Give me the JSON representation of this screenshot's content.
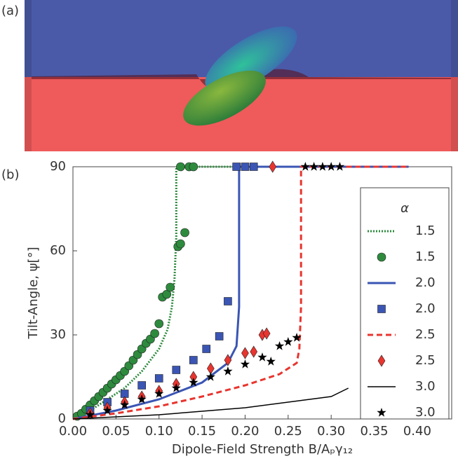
{
  "panel_labels": [
    "(a)",
    "(b)"
  ],
  "chart_data": {
    "type": "line",
    "xlabel": "Dipole-Field Strength B/Aₚγ₁₂",
    "ylabel": "Tilt-Angle, ψ[°]",
    "xlim": [
      0,
      0.44
    ],
    "ylim": [
      0,
      90
    ],
    "xticks": [
      {
        "value": 0,
        "label": "0.00"
      },
      {
        "value": 0.05,
        "label": "0.05"
      },
      {
        "value": 0.1,
        "label": "0.10"
      },
      {
        "value": 0.15,
        "label": "0.15"
      },
      {
        "value": 0.2,
        "label": "0.20"
      },
      {
        "value": 0.25,
        "label": "0.25"
      },
      {
        "value": 0.3,
        "label": "0.30"
      },
      {
        "value": 0.35,
        "label": "0.35"
      },
      {
        "value": 0.4,
        "label": "0.40"
      }
    ],
    "yticks": [
      0,
      30,
      60,
      90
    ],
    "legend_title": "α",
    "legend": "right",
    "series": [
      {
        "name": "1.5",
        "color": "#2e8b3e",
        "style": "dotted",
        "x": [
          0,
          0.02,
          0.04,
          0.06,
          0.08,
          0.1,
          0.11,
          0.115,
          0.118,
          0.12,
          0.12,
          0.39
        ],
        "values": [
          0,
          3,
          7,
          11,
          17,
          25,
          32,
          40,
          50,
          65,
          90,
          90
        ]
      },
      {
        "name": "1.5",
        "color": "#2e8b3e",
        "marker": "circle",
        "x": [
          0.005,
          0.01,
          0.015,
          0.02,
          0.025,
          0.03,
          0.035,
          0.04,
          0.045,
          0.05,
          0.055,
          0.06,
          0.065,
          0.07,
          0.075,
          0.08,
          0.085,
          0.09,
          0.095,
          0.1,
          0.104,
          0.109,
          0.113,
          0.122,
          0.125,
          0.13,
          0.125,
          0.135,
          0.14
        ],
        "values": [
          1,
          2,
          3.5,
          5,
          6.5,
          8,
          9.5,
          11,
          12.5,
          14,
          15.5,
          17,
          19,
          21,
          23,
          25,
          27,
          28.5,
          30.5,
          34,
          43.5,
          44.5,
          47,
          61.5,
          62.5,
          66.5,
          90,
          90,
          90
        ]
      },
      {
        "name": "2.0",
        "color": "#3a55b4",
        "style": "solid",
        "x": [
          0,
          0.05,
          0.1,
          0.15,
          0.18,
          0.19,
          0.193,
          0.193,
          0.39
        ],
        "values": [
          0,
          3,
          7,
          13,
          20,
          26,
          40,
          90,
          90
        ]
      },
      {
        "name": "2.0",
        "color": "#3a55b4",
        "marker": "square",
        "x": [
          0.02,
          0.04,
          0.06,
          0.08,
          0.1,
          0.12,
          0.14,
          0.155,
          0.17,
          0.18,
          0.19,
          0.2,
          0.21
        ],
        "values": [
          3,
          6,
          9,
          12,
          14.5,
          17.5,
          21,
          25,
          29.5,
          42,
          90,
          90,
          90
        ]
      },
      {
        "name": "2.5",
        "color": "#e8352f",
        "style": "dashed",
        "x": [
          0,
          0.05,
          0.1,
          0.15,
          0.2,
          0.24,
          0.26,
          0.263,
          0.265,
          0.265,
          0.39
        ],
        "values": [
          0,
          2,
          4.5,
          8,
          12,
          16,
          20,
          25,
          40,
          90,
          90
        ]
      },
      {
        "name": "2.5",
        "color": "#e8352f",
        "marker": "diamond",
        "x": [
          0.02,
          0.04,
          0.06,
          0.08,
          0.1,
          0.12,
          0.14,
          0.16,
          0.18,
          0.2,
          0.21,
          0.22,
          0.225,
          0.232
        ],
        "values": [
          2,
          4,
          6,
          8,
          10,
          12.5,
          15,
          18,
          21,
          23.5,
          24,
          30,
          30.5,
          90
        ]
      },
      {
        "name": "3.0",
        "color": "#000000",
        "style": "solid",
        "x": [
          0,
          0.1,
          0.2,
          0.3,
          0.32
        ],
        "values": [
          0,
          1.5,
          4,
          8,
          11
        ]
      },
      {
        "name": "3.0",
        "color": "#000000",
        "marker": "star",
        "x": [
          0.02,
          0.04,
          0.06,
          0.08,
          0.1,
          0.12,
          0.14,
          0.16,
          0.18,
          0.2,
          0.22,
          0.23,
          0.24,
          0.25,
          0.26,
          0.27,
          0.28,
          0.29,
          0.3,
          0.31
        ],
        "values": [
          1.5,
          3,
          5,
          7,
          9,
          11,
          13,
          15,
          17,
          19.5,
          22,
          20.5,
          26,
          27.5,
          29,
          90,
          90,
          90,
          90,
          90
        ]
      }
    ]
  }
}
